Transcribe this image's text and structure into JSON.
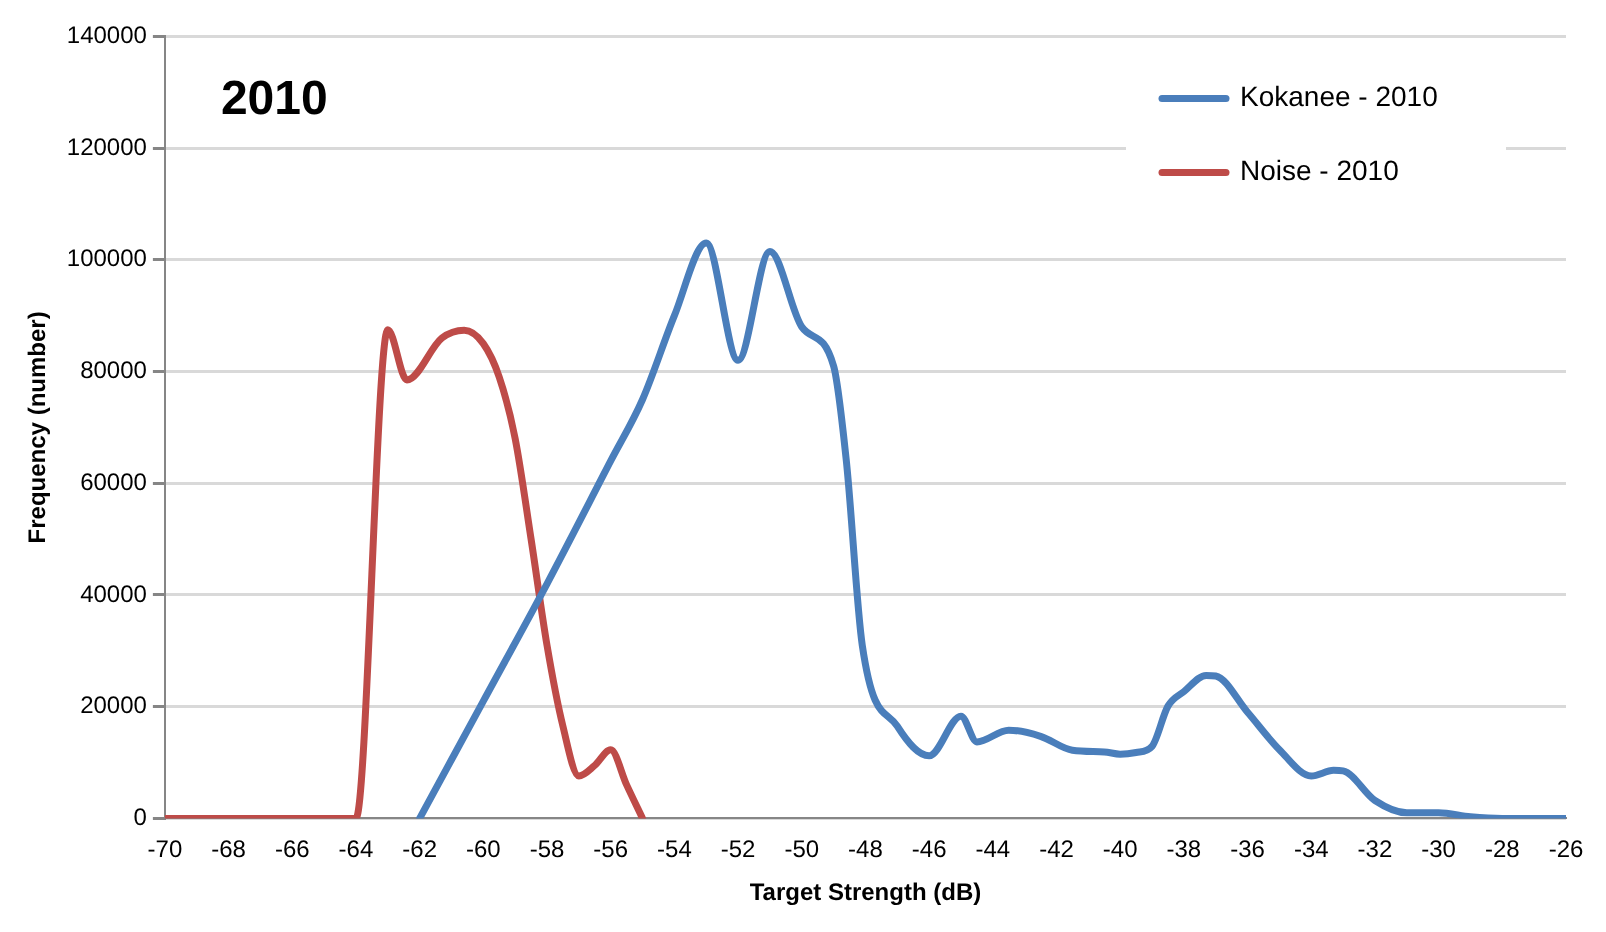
{
  "chart_data": {
    "type": "line",
    "annotations": [
      "2010"
    ],
    "xlabel": "Target Strength (dB)",
    "ylabel": "Frequency (number)",
    "xlim": [
      -70,
      -26
    ],
    "xticks": [
      -70,
      -68,
      -66,
      -64,
      -62,
      -60,
      -58,
      -56,
      -54,
      -52,
      -50,
      -48,
      -46,
      -44,
      -42,
      -40,
      -38,
      -36,
      -34,
      -32,
      -30,
      -28,
      -26
    ],
    "ylim": [
      0,
      140000
    ],
    "yticks": [
      0,
      20000,
      40000,
      60000,
      80000,
      100000,
      120000,
      140000
    ],
    "grid": "y",
    "legend": "top right",
    "marker": "none",
    "line_style": "solid",
    "series": [
      {
        "name": "Kokanee - 2010",
        "color": "#4a7ebb",
        "x": [
          -62,
          -60,
          -58,
          -56,
          -55,
          -54,
          -53,
          -52,
          -51,
          -50,
          -49,
          -48.6,
          -48.1,
          -47,
          -46,
          -45,
          -44.5,
          -43.5,
          -42.5,
          -41.5,
          -40.5,
          -40,
          -39.5,
          -39,
          -38.5,
          -38,
          -37.3,
          -37,
          -36,
          -35,
          -34,
          -33.3,
          -33,
          -32,
          -31,
          -30,
          -29,
          -28,
          -27,
          -26
        ],
        "values": [
          0,
          21000,
          42000,
          64000,
          75000,
          90000,
          103000,
          82000,
          101500,
          88000,
          81000,
          64000,
          31000,
          16500,
          11200,
          18300,
          13700,
          15800,
          14700,
          12200,
          11900,
          11500,
          11800,
          12900,
          20100,
          22700,
          25600,
          25500,
          19000,
          12300,
          7600,
          8600,
          8500,
          3200,
          1000,
          1000,
          300,
          0,
          0,
          0
        ]
      },
      {
        "name": "Noise - 2010",
        "color": "#be4b48",
        "x": [
          -70,
          -65,
          -64,
          -63,
          -62.4,
          -61.3,
          -60.6,
          -60,
          -59.5,
          -59,
          -58.5,
          -58,
          -57.5,
          -57,
          -56.5,
          -56,
          -55.5,
          -55
        ],
        "values": [
          0,
          0,
          0,
          87500,
          78500,
          86000,
          87400,
          85000,
          79000,
          68000,
          50000,
          31000,
          16500,
          7600,
          9500,
          12300,
          6000,
          0
        ]
      }
    ]
  }
}
